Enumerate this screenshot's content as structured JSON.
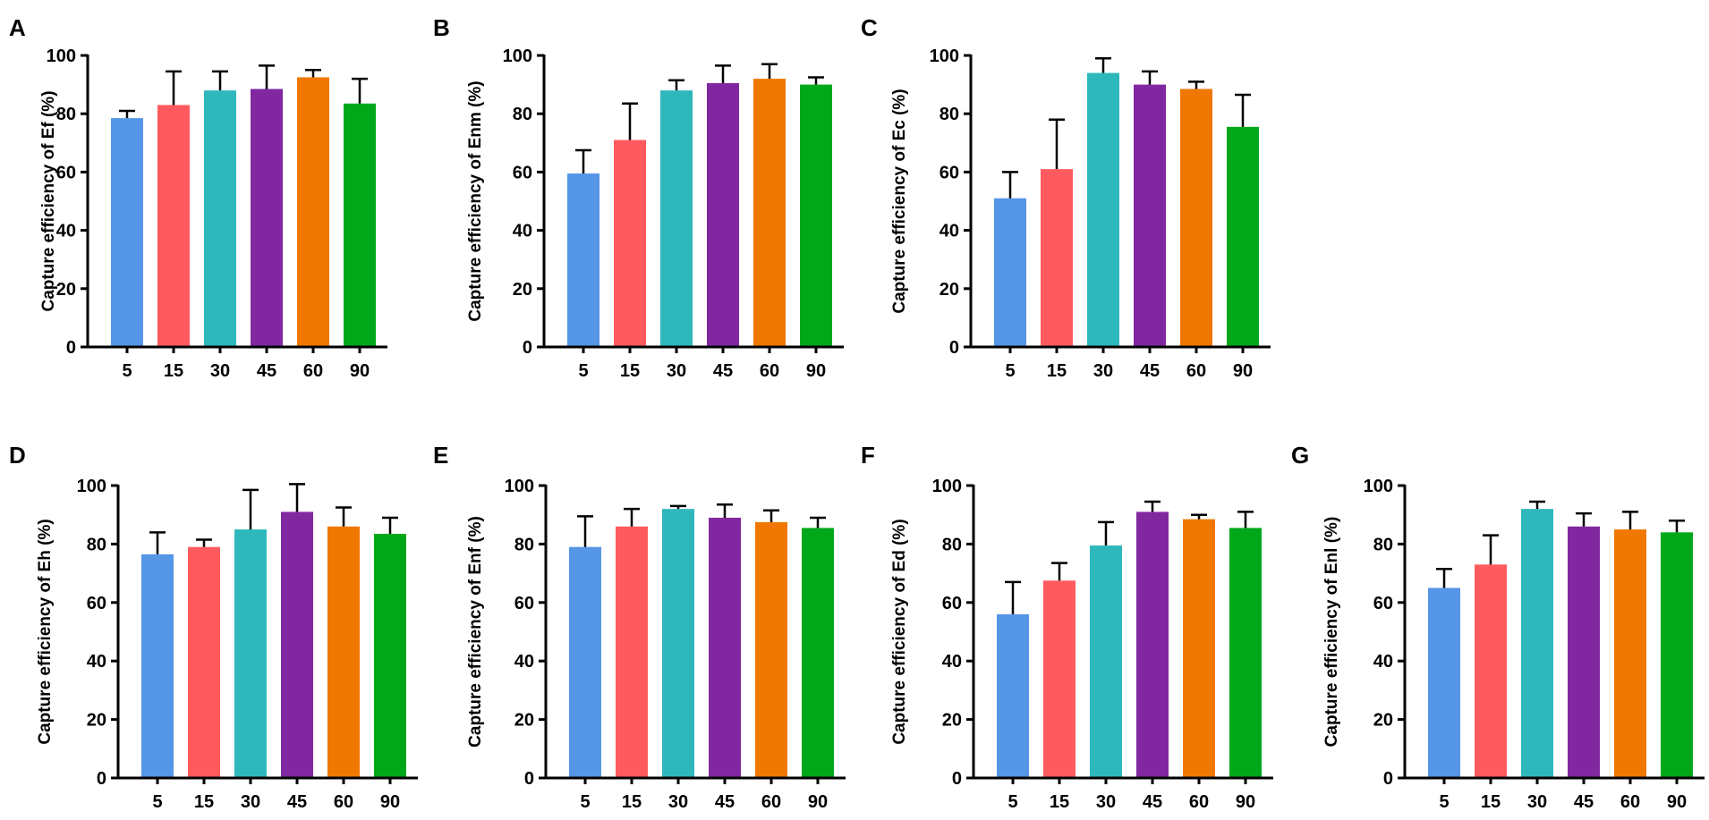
{
  "figure": {
    "categories": [
      "5",
      "15",
      "30",
      "45",
      "60",
      "90"
    ],
    "colors": [
      "#5596e6",
      "#ff5b5f",
      "#2fb8bc",
      "#8128a0",
      "#f07800",
      "#00a819"
    ],
    "y_ticks": [
      "0",
      "20",
      "40",
      "60",
      "80",
      "100"
    ]
  },
  "chart_data": [
    {
      "type": "bar",
      "panel": "A",
      "ylabel": "Capture efficiency of Ef (%)",
      "xlabel": "",
      "ylim": [
        0,
        100
      ],
      "categories": [
        "5",
        "15",
        "30",
        "45",
        "60",
        "90"
      ],
      "values": [
        78.5,
        83,
        88,
        88.5,
        92.5,
        83.5
      ],
      "errors": [
        2.5,
        11.5,
        6.5,
        8,
        2.5,
        8.5
      ]
    },
    {
      "type": "bar",
      "panel": "B",
      "ylabel": "Capture efficiency of Enm (%)",
      "xlabel": "",
      "ylim": [
        0,
        100
      ],
      "categories": [
        "5",
        "15",
        "30",
        "45",
        "60",
        "90"
      ],
      "values": [
        59.5,
        71,
        88,
        90.5,
        92,
        90
      ],
      "errors": [
        8,
        12.5,
        3.5,
        6,
        5,
        2.5
      ]
    },
    {
      "type": "bar",
      "panel": "C",
      "ylabel": "Capture efficiency of Ec (%)",
      "xlabel": "",
      "ylim": [
        0,
        100
      ],
      "categories": [
        "5",
        "15",
        "30",
        "45",
        "60",
        "90"
      ],
      "values": [
        51,
        61,
        94,
        90,
        88.5,
        75.5
      ],
      "errors": [
        9,
        17,
        5,
        4.5,
        2.5,
        11
      ]
    },
    {
      "type": "bar",
      "panel": "D",
      "ylabel": "Capture efficiency of Eh (%)",
      "xlabel": "",
      "ylim": [
        0,
        100
      ],
      "categories": [
        "5",
        "15",
        "30",
        "45",
        "60",
        "90"
      ],
      "values": [
        76.5,
        79,
        85,
        91,
        86,
        83.5
      ],
      "errors": [
        7.5,
        2.5,
        13.5,
        9.5,
        6.5,
        5.5
      ]
    },
    {
      "type": "bar",
      "panel": "E",
      "ylabel": "Capture efficiency of Enf (%)",
      "xlabel": "",
      "ylim": [
        0,
        100
      ],
      "categories": [
        "5",
        "15",
        "30",
        "45",
        "60",
        "90"
      ],
      "values": [
        79,
        86,
        92,
        89,
        87.5,
        85.5
      ],
      "errors": [
        10.5,
        6,
        1,
        4.5,
        4,
        3.5
      ]
    },
    {
      "type": "bar",
      "panel": "F",
      "ylabel": "Capture efficiency of Ed (%)",
      "xlabel": "",
      "ylim": [
        0,
        100
      ],
      "categories": [
        "5",
        "15",
        "30",
        "45",
        "60",
        "90"
      ],
      "values": [
        56,
        67.5,
        79.5,
        91,
        88.5,
        85.5
      ],
      "errors": [
        11,
        6,
        8,
        3.5,
        1.5,
        5.5
      ]
    },
    {
      "type": "bar",
      "panel": "G",
      "ylabel": "Capture efficiency of Enl (%)",
      "xlabel": "",
      "ylim": [
        0,
        100
      ],
      "categories": [
        "5",
        "15",
        "30",
        "45",
        "60",
        "90"
      ],
      "values": [
        65,
        73,
        92,
        86,
        85,
        84
      ],
      "errors": [
        6.5,
        10,
        2.5,
        4.5,
        6,
        4
      ]
    }
  ]
}
